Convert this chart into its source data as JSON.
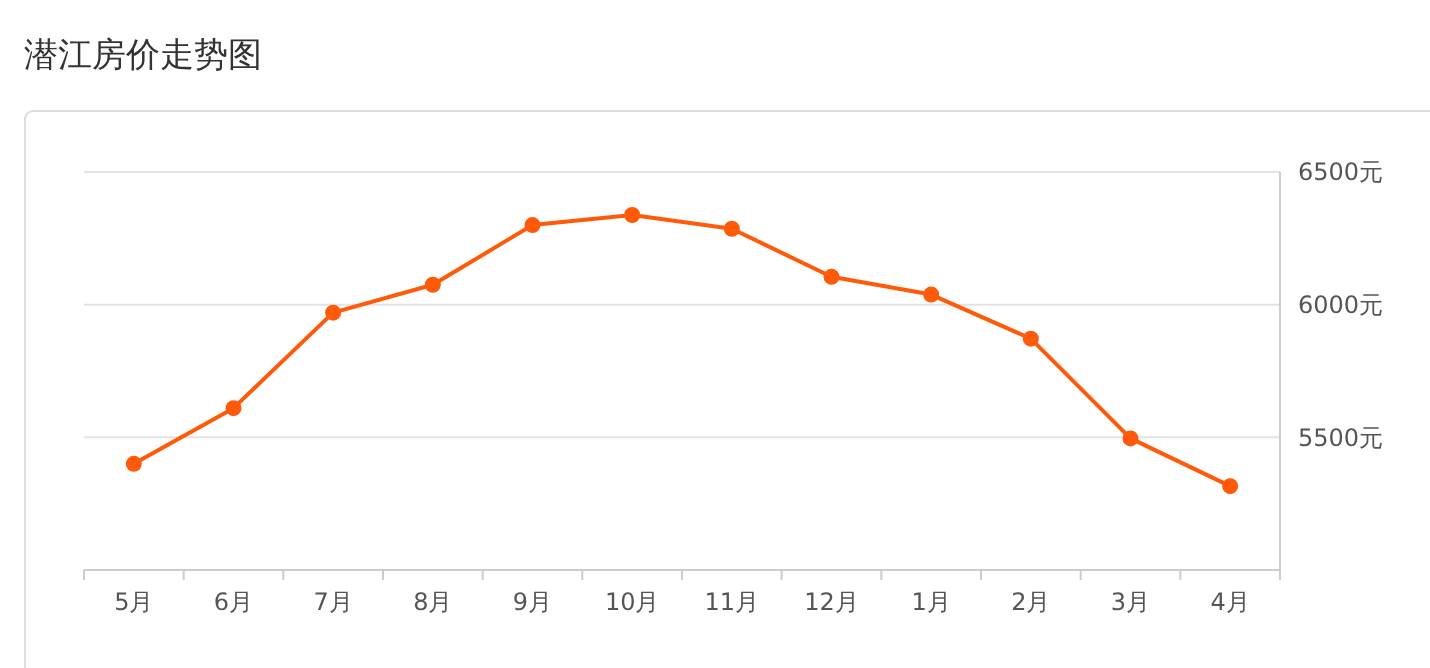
{
  "chart_data": {
    "type": "line",
    "title": "潜江房价走势图",
    "categories": [
      "5月",
      "6月",
      "7月",
      "8月",
      "9月",
      "10月",
      "11月",
      "12月",
      "1月",
      "2月",
      "3月",
      "4月"
    ],
    "series": [
      {
        "color": "#ff5a0a",
        "values": [
          5400,
          5610,
          5970,
          6075,
          6300,
          6338,
          6286,
          6105,
          6038,
          5872,
          5496,
          5316
        ]
      }
    ],
    "ylim": [
      5000,
      6500
    ],
    "yticks": [
      {
        "value": 5500,
        "label": "5500元"
      },
      {
        "value": 6000,
        "label": "6000元"
      },
      {
        "value": 6500,
        "label": "6500元"
      }
    ],
    "grid": "y",
    "marker": "circle",
    "line_style": "solid"
  }
}
